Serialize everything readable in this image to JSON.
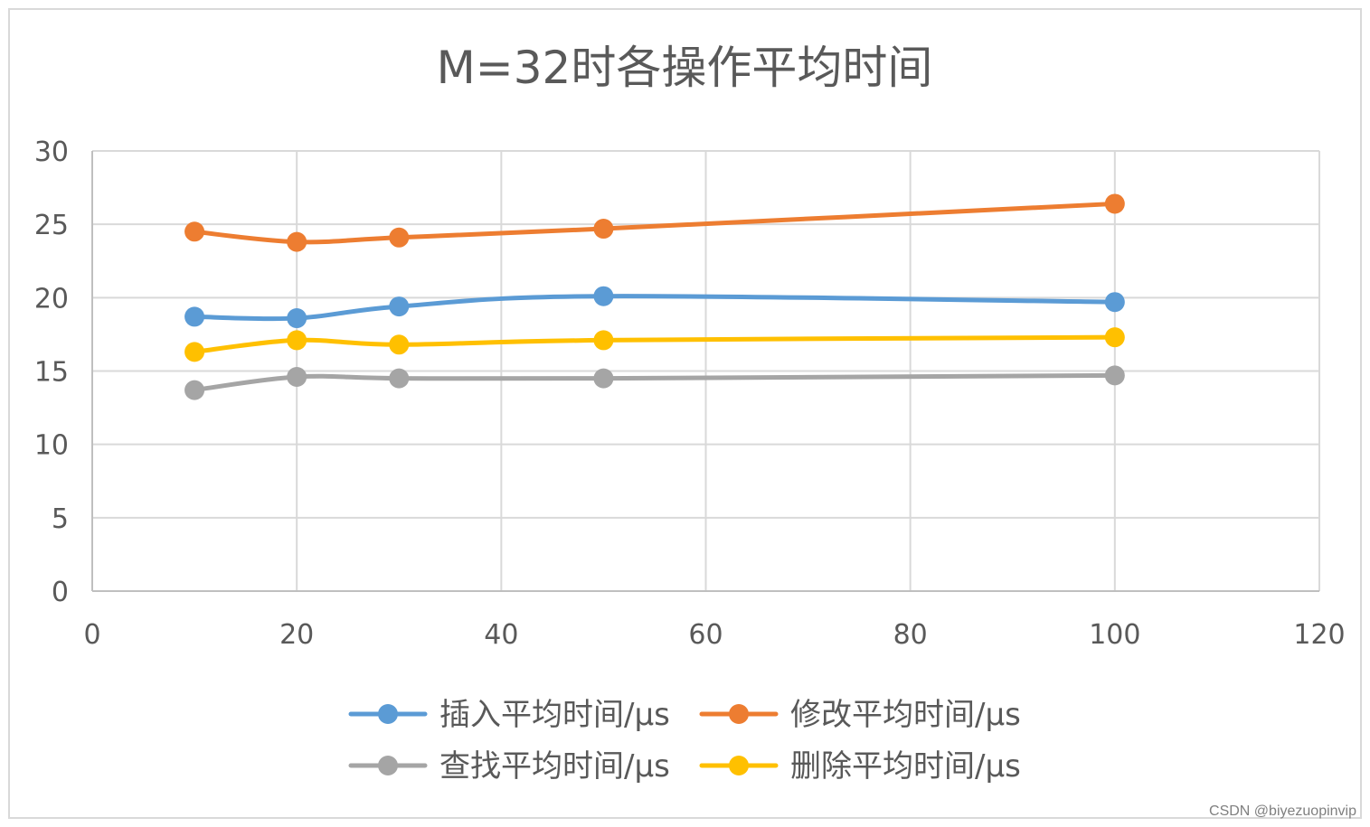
{
  "chart_data": {
    "type": "line",
    "title": "M=32时各操作平均时间",
    "xlabel": "",
    "ylabel": "",
    "xlim": [
      0,
      120
    ],
    "ylim": [
      0,
      30
    ],
    "x_ticks": [
      "0",
      "20",
      "40",
      "60",
      "80",
      "100",
      "120"
    ],
    "y_ticks": [
      "0",
      "5",
      "10",
      "15",
      "20",
      "25",
      "30"
    ],
    "grid": true,
    "smoothed": true,
    "legend_position": "bottom",
    "x": [
      10,
      20,
      30,
      50,
      100
    ],
    "series": [
      {
        "name": "插入平均时间/μs",
        "color": "#5b9bd5",
        "values": [
          18.7,
          18.6,
          19.4,
          20.1,
          19.7
        ]
      },
      {
        "name": "修改平均时间/μs",
        "color": "#ed7d31",
        "values": [
          24.5,
          23.8,
          24.1,
          24.7,
          26.4
        ]
      },
      {
        "name": "查找平均时间/μs",
        "color": "#a5a5a5",
        "values": [
          13.7,
          14.6,
          14.5,
          14.5,
          14.7
        ]
      },
      {
        "name": "删除平均时间/μs",
        "color": "#ffc000",
        "values": [
          16.3,
          17.1,
          16.8,
          17.1,
          17.3
        ]
      }
    ]
  },
  "watermark": "CSDN @biyezuopinvip"
}
